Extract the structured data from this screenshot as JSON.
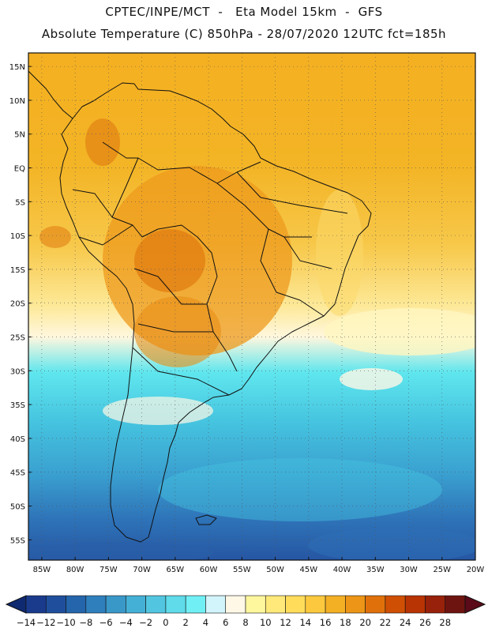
{
  "header": {
    "line1": "CPTEC/INPE/MCT  -   Eta Model 15km  -  GFS",
    "line2": "Absolute Temperature (C) 850hPa - 28/07/2020 12UTC fct=185h"
  },
  "map": {
    "lat_labels": [
      "15N",
      "10N",
      "5N",
      "EQ",
      "5S",
      "10S",
      "15S",
      "20S",
      "25S",
      "30S",
      "35S",
      "40S",
      "45S",
      "50S",
      "55S"
    ],
    "lat_values": [
      15,
      10,
      5,
      0,
      -5,
      -10,
      -15,
      -20,
      -25,
      -30,
      -35,
      -40,
      -45,
      -50,
      -55
    ],
    "lon_labels": [
      "85W",
      "80W",
      "75W",
      "70W",
      "65W",
      "60W",
      "55W",
      "50W",
      "45W",
      "40W",
      "35W",
      "30W",
      "25W",
      "20W"
    ],
    "lon_values": [
      -85,
      -80,
      -75,
      -70,
      -65,
      -60,
      -55,
      -50,
      -45,
      -40,
      -35,
      -30,
      -25,
      -20
    ],
    "lat_range": [
      -58,
      17
    ],
    "lon_range": [
      -87,
      -20
    ],
    "gridlines": true,
    "gridline_style": "dotted"
  },
  "colorbar": {
    "labels": [
      "-14",
      "-12",
      "-10",
      "-8",
      "-6",
      "-4",
      "-2",
      "0",
      "2",
      "4",
      "6",
      "8",
      "10",
      "12",
      "14",
      "16",
      "18",
      "20",
      "22",
      "24",
      "26",
      "28"
    ],
    "colors": [
      "#1a3a8c",
      "#1f4f9c",
      "#2565ab",
      "#2f7fbd",
      "#3a98c9",
      "#45b0d6",
      "#52c6e0",
      "#5fdbe9",
      "#70f0f5",
      "#d2f5fb",
      "#fff8e6",
      "#fff79e",
      "#ffe97a",
      "#ffdc5a",
      "#fcc93e",
      "#f4b025",
      "#ed9516",
      "#e0700a",
      "#cf4f04",
      "#b83404",
      "#97210a",
      "#6e1410"
    ],
    "under_color": "#0f2a70",
    "over_color": "#5a0a18"
  }
}
